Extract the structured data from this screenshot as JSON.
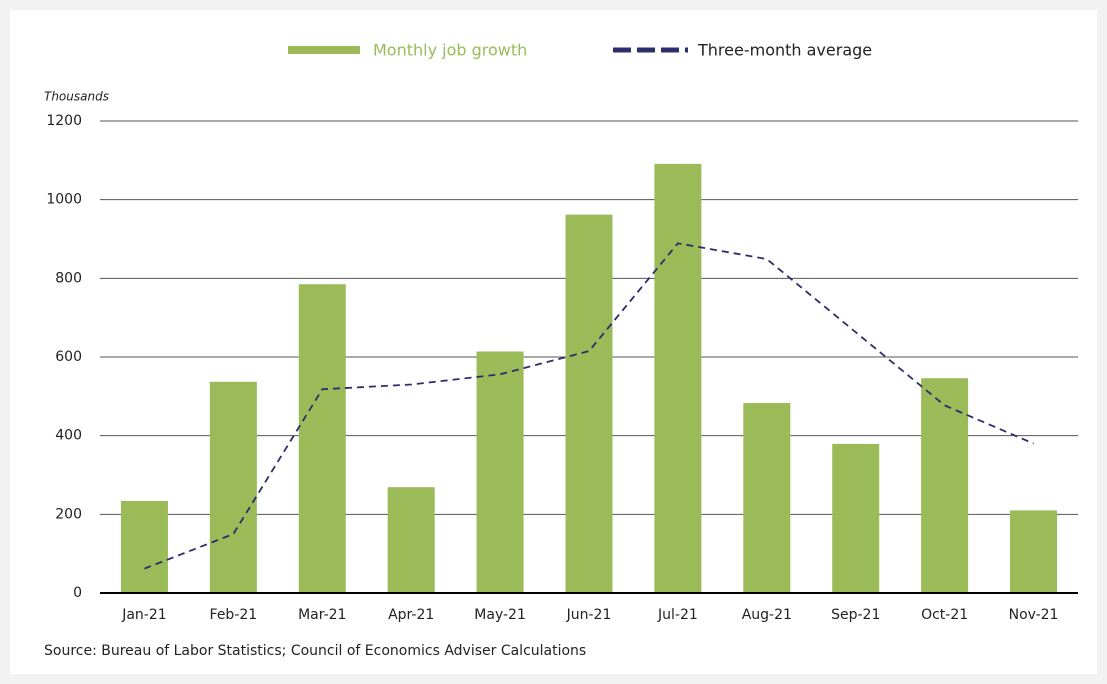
{
  "chart_data": {
    "type": "bar",
    "y_axis_label": "Thousands",
    "source": "Source: Bureau of Labor Statistics; Council of Economics Adviser Calculations",
    "categories": [
      "Jan-21",
      "Feb-21",
      "Mar-21",
      "Apr-21",
      "May-21",
      "Jun-21",
      "Jul-21",
      "Aug-21",
      "Sep-21",
      "Oct-21",
      "Nov-21"
    ],
    "series": [
      {
        "name": "Monthly job growth",
        "type": "bar",
        "color": "#9bbb59",
        "values": [
          234,
          537,
          785,
          269,
          614,
          962,
          1091,
          483,
          379,
          546,
          210
        ]
      },
      {
        "name": "Three-month average",
        "type": "line",
        "color": "#2e2d6b",
        "values": [
          62,
          150,
          518,
          530,
          556,
          615,
          889,
          849,
          663,
          477,
          380
        ]
      }
    ],
    "ylim": [
      0,
      1200
    ],
    "yticks": [
      0,
      200,
      400,
      600,
      800,
      1000,
      1200
    ],
    "grid": true
  }
}
